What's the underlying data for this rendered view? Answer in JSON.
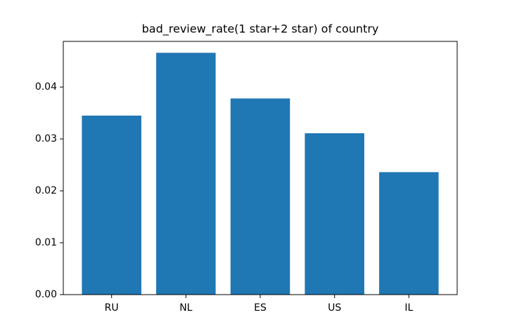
{
  "chart_data": {
    "type": "bar",
    "title": "bad_review_rate(1 star+2 star) of country",
    "categories": [
      "RU",
      "NL",
      "ES",
      "US",
      "IL"
    ],
    "values": [
      0.0345,
      0.0466,
      0.0378,
      0.0311,
      0.0236
    ],
    "color": "#1f77b4",
    "ylim": [
      0,
      0.0488
    ],
    "yticks": [
      {
        "value": 0,
        "label": "0.00"
      },
      0.01,
      0.02,
      0.03,
      0.04
    ]
  }
}
